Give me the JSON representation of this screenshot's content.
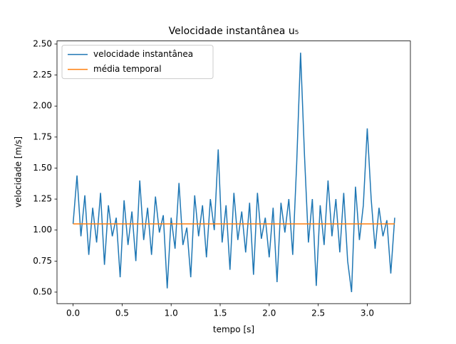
{
  "chart_data": {
    "type": "line",
    "title": "Velocidade instantânea u₅",
    "xlabel": "tempo [s]",
    "ylabel": "velocidade [m/s]",
    "xlim": [
      -0.164,
      3.44
    ],
    "ylim": [
      0.407,
      2.525
    ],
    "xticks": [
      {
        "value": 0,
        "label": "0.0"
      },
      0.5,
      {
        "value": 1,
        "label": "1.0"
      },
      1.5,
      {
        "value": 2,
        "label": "2.0"
      },
      2.5,
      {
        "value": 3,
        "label": "3.0"
      }
    ],
    "yticks": [
      {
        "value": 0.5,
        "label": "0.50"
      },
      {
        "value": 0.75,
        "label": "0.75"
      },
      {
        "value": 1,
        "label": "1.00"
      },
      {
        "value": 1.25,
        "label": "1.25"
      },
      {
        "value": 1.5,
        "label": "1.50"
      },
      {
        "value": 1.75,
        "label": "1.75"
      },
      {
        "value": 2,
        "label": "2.00"
      },
      {
        "value": 2.25,
        "label": "2.25"
      },
      {
        "value": 2.5,
        "label": "2.50"
      }
    ],
    "legend": "upper left",
    "series": [
      {
        "name": "velocidade instantânea",
        "color": "#1f77b4",
        "x": [
          0,
          0.04,
          0.08,
          0.12,
          0.16,
          0.2,
          0.24,
          0.28,
          0.32,
          0.36,
          0.4,
          0.44,
          0.48,
          0.52,
          0.56,
          0.6,
          0.64,
          0.68,
          0.72,
          0.76,
          0.8,
          0.84,
          0.88,
          0.92,
          0.96,
          1,
          1.04,
          1.08,
          1.12,
          1.16,
          1.2,
          1.24,
          1.28,
          1.32,
          1.36,
          1.4,
          1.44,
          1.48,
          1.52,
          1.56,
          1.6,
          1.64,
          1.68,
          1.72,
          1.76,
          1.8,
          1.84,
          1.88,
          1.92,
          1.96,
          2,
          2.04,
          2.08,
          2.12,
          2.16,
          2.2,
          2.24,
          2.28,
          2.32,
          2.36,
          2.4,
          2.44,
          2.48,
          2.52,
          2.56,
          2.6,
          2.64,
          2.68,
          2.72,
          2.76,
          2.8,
          2.84,
          2.88,
          2.92,
          2.96,
          3,
          3.04,
          3.08,
          3.12,
          3.16,
          3.2,
          3.24,
          3.28
        ],
        "values": [
          1.05,
          1.44,
          0.95,
          1.28,
          0.8,
          1.18,
          0.9,
          1.3,
          0.72,
          1.2,
          0.95,
          1.1,
          0.62,
          1.24,
          0.88,
          1.15,
          0.75,
          1.4,
          0.92,
          1.18,
          0.8,
          1.27,
          0.98,
          1.12,
          0.53,
          1.1,
          0.85,
          1.38,
          0.88,
          1.02,
          0.62,
          1.28,
          0.95,
          1.2,
          0.78,
          1.25,
          1.0,
          1.65,
          0.9,
          1.2,
          0.68,
          1.3,
          0.92,
          1.15,
          0.82,
          1.22,
          0.64,
          1.3,
          0.93,
          1.1,
          0.78,
          1.18,
          0.58,
          1.22,
          0.98,
          1.25,
          0.8,
          1.53,
          2.43,
          1.6,
          0.9,
          1.25,
          0.55,
          1.2,
          0.88,
          1.4,
          0.95,
          1.25,
          0.82,
          1.3,
          0.75,
          0.5,
          1.35,
          0.92,
          1.2,
          1.82,
          1.25,
          0.85,
          1.18,
          0.95,
          1.08,
          0.65,
          1.1
        ]
      },
      {
        "name": "média temporal",
        "color": "#ff7f0e",
        "x": [
          0,
          3.28
        ],
        "values": [
          1.05,
          1.05
        ]
      }
    ]
  }
}
